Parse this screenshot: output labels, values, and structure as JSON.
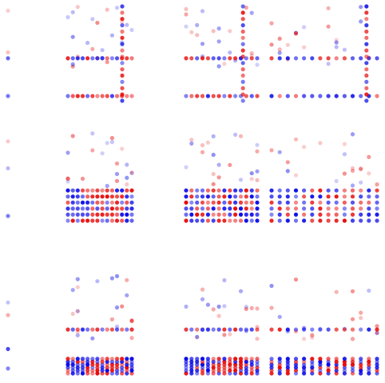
{
  "chart_data": {
    "type": "scatter",
    "title": "",
    "grid": false,
    "legend": "none",
    "marker_opacity": 0.45,
    "series_colors": {
      "red": "#e60000",
      "blue": "#0000e6"
    },
    "x_range": [
      0,
      1
    ],
    "y_range": [
      0,
      1
    ],
    "rows": 3,
    "cols": 4,
    "panels": [
      {
        "row": 0,
        "col": 0,
        "dense_y": [
          0.05,
          0.45
        ],
        "seed": 11
      },
      {
        "row": 0,
        "col": 1,
        "dense_y": [
          0.05,
          0.45
        ],
        "spine_x": 0.85,
        "seed": 12
      },
      {
        "row": 0,
        "col": 2,
        "dense_y": [
          0.05,
          0.45
        ],
        "spine_x": 0.8,
        "seed": 13
      },
      {
        "row": 0,
        "col": 3,
        "dense_y": [
          0.05,
          0.45
        ],
        "spine_x": 0.9,
        "seed": 14
      },
      {
        "row": 1,
        "col": 0,
        "dense_y": [
          0.05
        ],
        "seed": 21
      },
      {
        "row": 1,
        "col": 1,
        "band": [
          0.0,
          0.32
        ],
        "seed": 22
      },
      {
        "row": 1,
        "col": 2,
        "band": [
          0.0,
          0.32
        ],
        "seed": 23
      },
      {
        "row": 1,
        "col": 3,
        "band": [
          0.0,
          0.32
        ],
        "seed": 24
      },
      {
        "row": 2,
        "col": 0,
        "dense_y": [
          0.05,
          0.25
        ],
        "seed": 31
      },
      {
        "row": 2,
        "col": 1,
        "band": [
          0.0,
          0.15
        ],
        "dense_y": [
          0.45
        ],
        "seed": 32
      },
      {
        "row": 2,
        "col": 2,
        "band": [
          0.0,
          0.15
        ],
        "dense_y": [
          0.45
        ],
        "seed": 33
      },
      {
        "row": 2,
        "col": 3,
        "band": [
          0.0,
          0.15
        ],
        "dense_y": [
          0.45
        ],
        "seed": 34
      }
    ]
  }
}
